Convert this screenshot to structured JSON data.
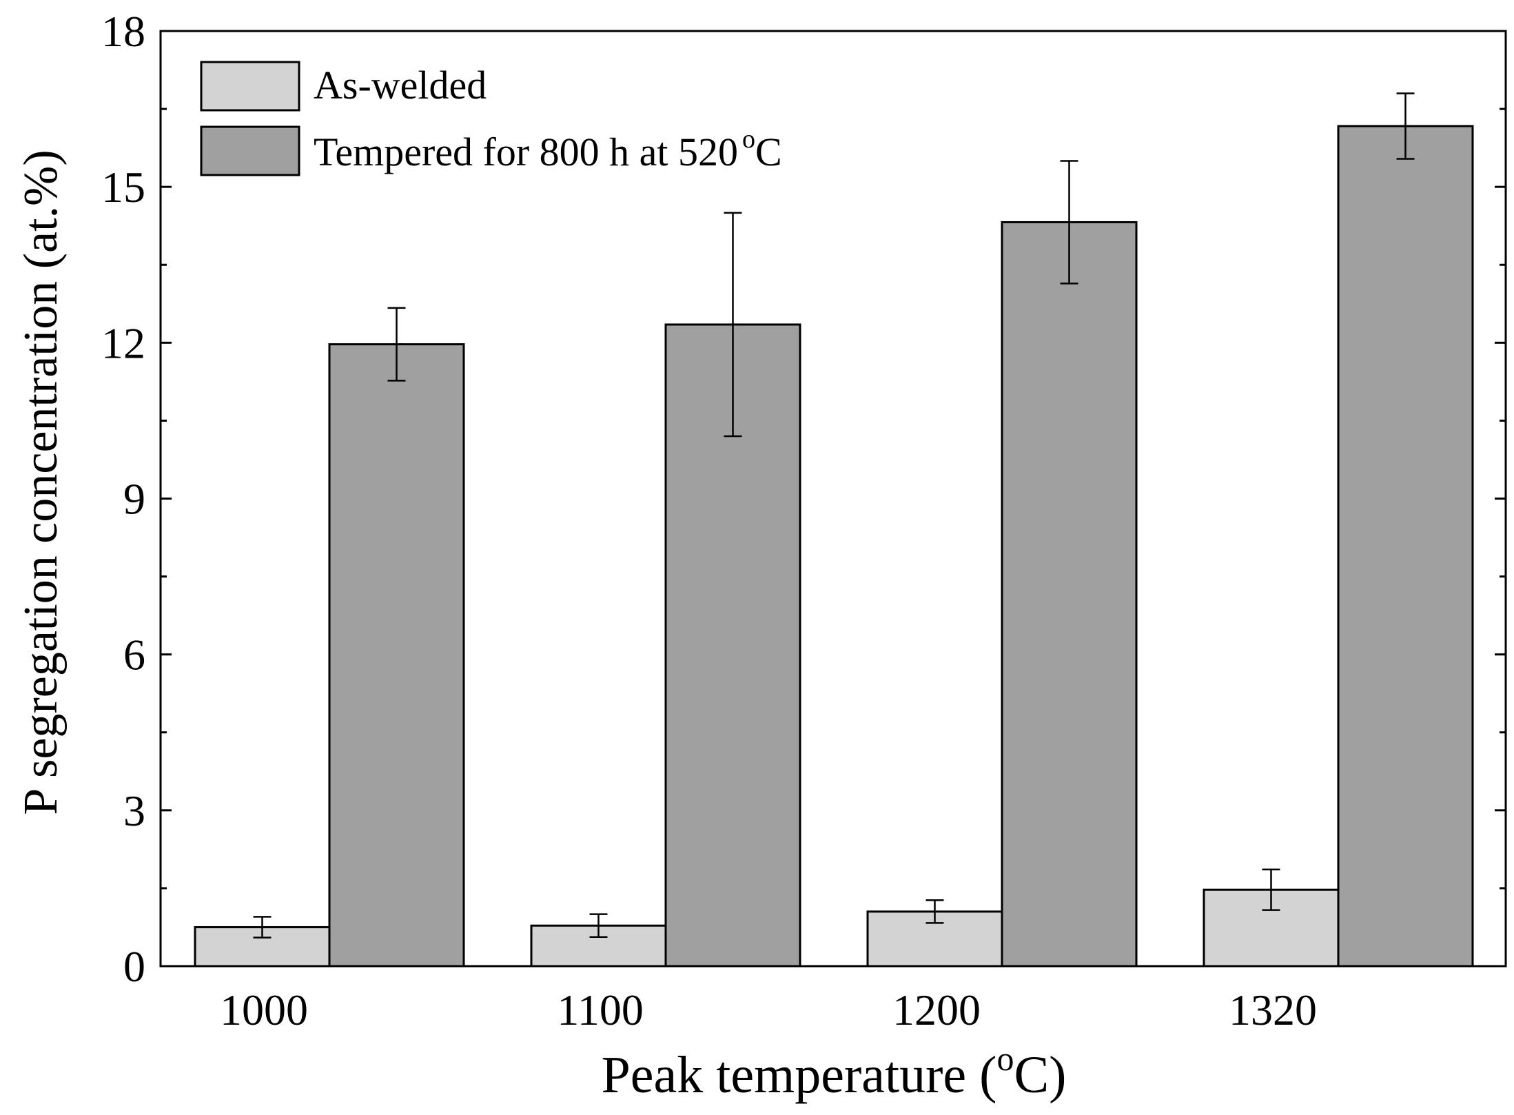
{
  "chart_data": {
    "type": "bar",
    "title": "",
    "xlabel": "Peak temperature (",
    "xlabel_sup": "o",
    "xlabel_tail": "C)",
    "ylabel": "P segregation concentration (at.%)",
    "categories": [
      "1000",
      "1100",
      "1200",
      "1320"
    ],
    "ylim": [
      0,
      18
    ],
    "yticks": [
      0,
      3,
      6,
      9,
      12,
      15,
      18
    ],
    "ytick_labels": [
      "0",
      "3",
      "6",
      "9",
      "12",
      "15",
      "18"
    ],
    "grid": false,
    "legend_position": "top-left",
    "series": [
      {
        "name": "As-welded",
        "legend_text": "As-welded",
        "color": "#d3d3d3",
        "values": [
          0.75,
          0.78,
          1.05,
          1.47
        ],
        "errors": [
          0.2,
          0.22,
          0.22,
          0.39
        ]
      },
      {
        "name": "Tempered for 800 h at 520 °C",
        "legend_text": "Tempered for 800 h at 520",
        "legend_sup": "o",
        "legend_tail": "C",
        "color": "#a0a0a0",
        "values": [
          11.97,
          12.35,
          14.32,
          16.17
        ],
        "errors": [
          0.7,
          2.15,
          1.18,
          0.63
        ]
      }
    ],
    "colors": {
      "edge": "#000000",
      "background": "#ffffff"
    }
  }
}
